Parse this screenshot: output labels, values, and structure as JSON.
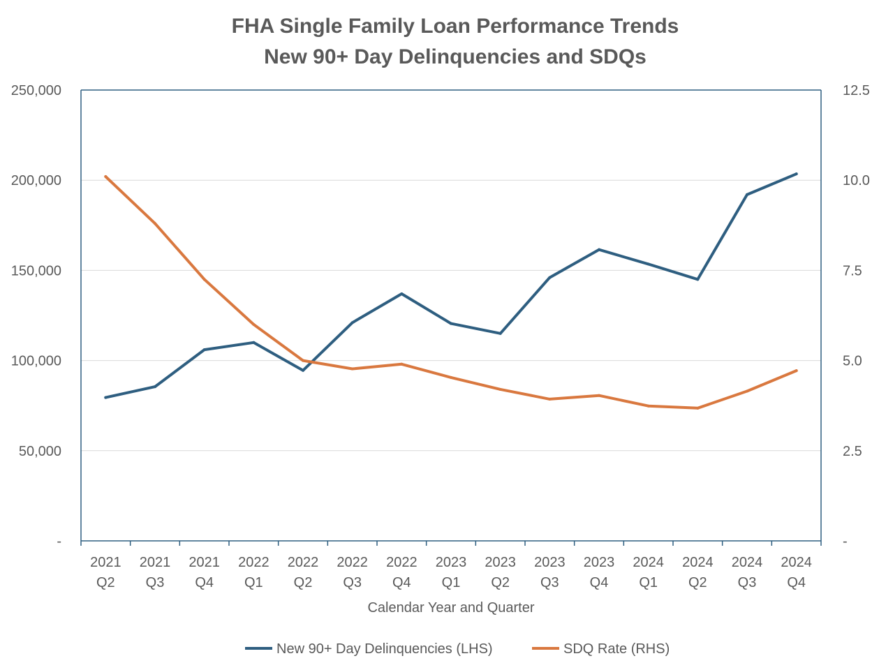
{
  "chart_data": {
    "type": "line",
    "title_line1": "FHA Single Family Loan Performance Trends",
    "title_line2": "New 90+ Day Delinquencies and SDQs",
    "xlabel": "Calendar Year and Quarter",
    "categories": [
      {
        "year": "2021",
        "quarter": "Q2"
      },
      {
        "year": "2021",
        "quarter": "Q3"
      },
      {
        "year": "2021",
        "quarter": "Q4"
      },
      {
        "year": "2022",
        "quarter": "Q1"
      },
      {
        "year": "2022",
        "quarter": "Q2"
      },
      {
        "year": "2022",
        "quarter": "Q3"
      },
      {
        "year": "2022",
        "quarter": "Q4"
      },
      {
        "year": "2023",
        "quarter": "Q1"
      },
      {
        "year": "2023",
        "quarter": "Q2"
      },
      {
        "year": "2023",
        "quarter": "Q3"
      },
      {
        "year": "2023",
        "quarter": "Q4"
      },
      {
        "year": "2024",
        "quarter": "Q1"
      },
      {
        "year": "2024",
        "quarter": "Q2"
      },
      {
        "year": "2024",
        "quarter": "Q3"
      },
      {
        "year": "2024",
        "quarter": "Q4"
      }
    ],
    "left_axis": {
      "ylim": [
        0,
        250000
      ],
      "tick_values": [
        0,
        50000,
        100000,
        150000,
        200000,
        250000
      ],
      "tick_labels": [
        "-",
        "50,000",
        "100,000",
        "150,000",
        "200,000",
        "250,000"
      ]
    },
    "right_axis": {
      "ylim": [
        0,
        12.5
      ],
      "tick_values": [
        0,
        2.5,
        5,
        7.5,
        10,
        12.5
      ],
      "tick_labels": [
        "-",
        "2.5",
        "5.0",
        "7.5",
        "10.0",
        "12.5"
      ]
    },
    "gridlines": true,
    "legend_position": "bottom",
    "series": [
      {
        "name": "New 90+ Day Delinquencies (LHS)",
        "axis": "left",
        "color": "#2E5E80",
        "values": [
          79500,
          85500,
          106000,
          110000,
          94500,
          121000,
          137000,
          120500,
          115000,
          146000,
          161500,
          153500,
          145000,
          192000,
          203500
        ]
      },
      {
        "name": "SDQ Rate (RHS)",
        "axis": "right",
        "color": "#D9783F",
        "values": [
          10.1,
          8.8,
          7.25,
          6.0,
          5.0,
          4.77,
          4.9,
          4.53,
          4.2,
          3.93,
          4.03,
          3.74,
          3.68,
          4.15,
          4.72
        ]
      }
    ],
    "colors": {
      "title": "#595959",
      "axis": "#2E5E80",
      "grid": "#D9D9D9",
      "text": "#595959"
    }
  }
}
